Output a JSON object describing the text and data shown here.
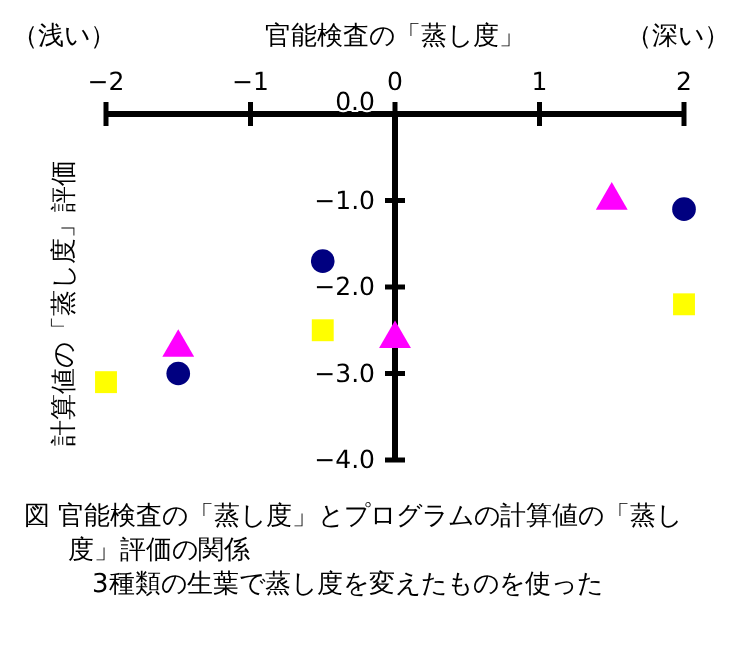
{
  "chart_data": {
    "type": "scatter",
    "title": "図 官能検査の「蒸し度」とプログラムの計算値の「蒸し度」評価の関係",
    "subtitle": "3種類の生葉で蒸し度を変えたものを使った",
    "xlabel": "官能検査の「蒸し度」",
    "ylabel": "計算値の「蒸し度」評価",
    "annotations": [
      "（浅い）",
      "（深い）"
    ],
    "xlim": [
      -2,
      2
    ],
    "ylim": [
      -4,
      0
    ],
    "xticks": [
      {
        "value": -2,
        "label": "−2"
      },
      {
        "value": -1,
        "label": "−1"
      },
      0,
      1,
      2
    ],
    "yticks": [
      {
        "value": 0,
        "label": "0.0"
      },
      {
        "value": -1,
        "label": "−1.0"
      },
      {
        "value": -2,
        "label": "−2.0"
      },
      {
        "value": -3,
        "label": "−3.0"
      },
      {
        "value": -4,
        "label": "−4.0"
      }
    ],
    "grid": false,
    "series": [
      {
        "color": "#000080",
        "marker": "circle",
        "x": [
          -0.5,
          -1.5,
          2
        ],
        "values": [
          -1.7,
          -3.0,
          -1.1
        ]
      },
      {
        "color": "#ff00ff",
        "marker": "triangle",
        "x": [
          -1.5,
          0,
          1.5
        ],
        "values": [
          -2.7,
          -2.6,
          -1.0
        ]
      },
      {
        "color": "#ffff00",
        "marker": "square",
        "x": [
          -2,
          -0.5,
          2
        ],
        "values": [
          -3.1,
          -2.5,
          -2.2
        ]
      }
    ]
  }
}
